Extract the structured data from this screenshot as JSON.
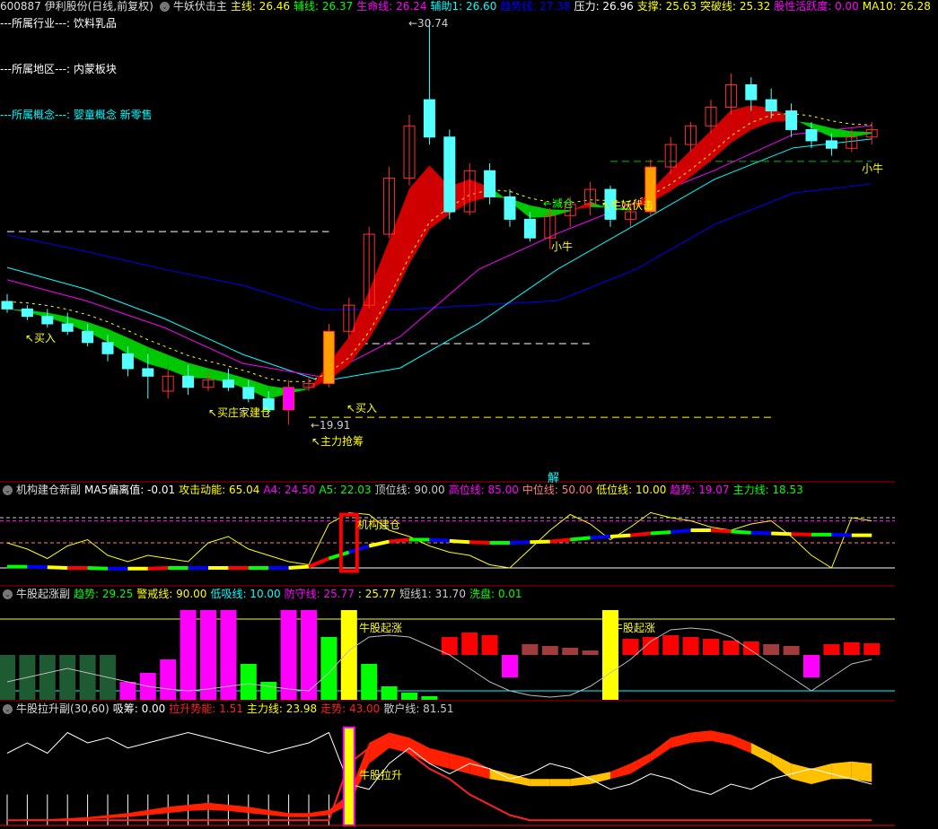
{
  "header": {
    "title": "600887 伊利股份(日线,前复权)",
    "indicator": "牛妖伏击主",
    "items": [
      {
        "label": "主线: 26.46",
        "color": "#ffff00"
      },
      {
        "label": "辅线: 26.37",
        "color": "#00ff00"
      },
      {
        "label": "生命线: 26.24",
        "color": "#ff00ff"
      },
      {
        "label": "辅助1: 26.60",
        "color": "#00ffff"
      },
      {
        "label": "趋势线: 27.38",
        "color": "#0000ff"
      },
      {
        "label": "压力: 26.96",
        "color": "#ffffff"
      },
      {
        "label": "支撑: 25.63",
        "color": "#ffff00"
      },
      {
        "label": "突破线: 25.32",
        "color": "#ffff00"
      },
      {
        "label": "股性活跃度: 0.00",
        "color": "#ff00ff"
      },
      {
        "label": "MA10: 26.28",
        "color": "#ffff00"
      }
    ]
  },
  "info": {
    "industry": "---所属行业---: 饮料乳品",
    "region": "---所属地区---: 内蒙板块",
    "concept": "---所属概念---: 婴童概念 新零售"
  },
  "annotations": {
    "high": "←30.74",
    "low": "←19.91",
    "buy1": "↖买入",
    "buy2": "↖买入",
    "dealer": "↖买庄家建仓",
    "main_grab": "↖主力抢筹",
    "reduce": "←减仓",
    "niuyao": "↖牛妖伏击",
    "xiaoniu1": "小牛",
    "xiaoniu2": "小牛",
    "jie": "解",
    "jigou": "机构建仓",
    "qizhang1": "牛股起涨",
    "qizhang2": "牛股起涨",
    "lasheng": "牛股拉升"
  },
  "panel2": {
    "title": "机构建仓新副",
    "items": [
      {
        "label": "MA5偏离值: -0.01",
        "color": "#ffffff"
      },
      {
        "label": "攻击动能: 65.04",
        "color": "#ffff00"
      },
      {
        "label": "A4: 24.50",
        "color": "#ff00ff"
      },
      {
        "label": "A5: 22.03",
        "color": "#00ff00"
      },
      {
        "label": "顶位线: 90.00",
        "color": "#cccccc"
      },
      {
        "label": "高位线: 85.00",
        "color": "#ff00ff"
      },
      {
        "label": "中位线: 50.00",
        "color": "#ff7f7f"
      },
      {
        "label": "低位线: 10.00",
        "color": "#ffff00"
      },
      {
        "label": "趋势: 19.07",
        "color": "#ff00ff"
      },
      {
        "label": "主力线: 18.53",
        "color": "#00ff00"
      }
    ]
  },
  "panel3": {
    "title": "牛股起涨副",
    "items": [
      {
        "label": "趋势: 29.25",
        "color": "#00ff00"
      },
      {
        "label": "警戒线: 90.00",
        "color": "#ffff00"
      },
      {
        "label": "低吸线: 10.00",
        "color": "#00ffff"
      },
      {
        "label": "防守线: 25.77",
        "color": "#ff00ff"
      },
      {
        "label": ": 25.77",
        "color": "#ffff00"
      },
      {
        "label": "短线1: 31.70",
        "color": "#cccccc"
      },
      {
        "label": "洗盘: 0.01",
        "color": "#00ff00"
      }
    ]
  },
  "panel4": {
    "title": "牛股拉升副(30,60)",
    "items": [
      {
        "label": "吸筹: 0.00",
        "color": "#ffffff"
      },
      {
        "label": "拉升势能: 1.51",
        "color": "#ff2020"
      },
      {
        "label": "主力线: 23.98",
        "color": "#ffff00"
      },
      {
        "label": "走势: 43.00",
        "color": "#ff2020"
      },
      {
        "label": "散户线: 81.51",
        "color": "#cccccc"
      }
    ]
  },
  "chart_data": [
    {
      "type": "candlestick",
      "name": "main",
      "ohlc": [
        [
          23.2,
          23.4,
          22.9,
          23.0
        ],
        [
          23.0,
          23.1,
          22.7,
          22.8
        ],
        [
          22.8,
          23.0,
          22.5,
          22.6
        ],
        [
          22.6,
          22.9,
          22.3,
          22.4
        ],
        [
          22.4,
          22.6,
          22.0,
          22.1
        ],
        [
          22.1,
          22.3,
          21.6,
          21.8
        ],
        [
          21.8,
          22.0,
          21.2,
          21.4
        ],
        [
          21.4,
          21.8,
          20.6,
          21.2
        ],
        [
          20.8,
          21.4,
          20.6,
          21.2
        ],
        [
          21.2,
          21.5,
          20.7,
          20.9
        ],
        [
          20.9,
          21.3,
          20.8,
          21.1
        ],
        [
          21.1,
          21.4,
          20.8,
          20.9
        ],
        [
          20.9,
          21.1,
          20.5,
          20.6
        ],
        [
          20.6,
          20.8,
          20.2,
          20.3
        ],
        [
          20.3,
          21.1,
          19.91,
          20.9
        ],
        [
          20.9,
          21.2,
          20.8,
          21.0
        ],
        [
          21.0,
          22.6,
          20.9,
          22.4
        ],
        [
          22.4,
          23.3,
          22.2,
          23.1
        ],
        [
          23.1,
          25.2,
          23.0,
          25.0
        ],
        [
          25.0,
          26.8,
          24.9,
          26.5
        ],
        [
          26.5,
          28.2,
          26.3,
          27.9
        ],
        [
          28.6,
          30.74,
          27.4,
          27.6
        ],
        [
          27.6,
          27.8,
          25.4,
          25.6
        ],
        [
          25.6,
          26.9,
          25.5,
          26.7
        ],
        [
          26.7,
          26.9,
          25.8,
          26.0
        ],
        [
          26.0,
          26.2,
          25.2,
          25.4
        ],
        [
          25.4,
          25.6,
          24.8,
          24.9
        ],
        [
          24.9,
          25.7,
          24.6,
          25.5
        ],
        [
          25.5,
          26.0,
          25.2,
          25.8
        ],
        [
          25.8,
          26.4,
          25.5,
          26.2
        ],
        [
          26.2,
          26.3,
          25.2,
          25.4
        ],
        [
          25.4,
          25.8,
          25.2,
          25.6
        ],
        [
          25.6,
          27.0,
          25.5,
          26.8
        ],
        [
          26.8,
          27.6,
          26.6,
          27.4
        ],
        [
          27.4,
          28.0,
          27.2,
          27.9
        ],
        [
          27.9,
          28.6,
          27.7,
          28.4
        ],
        [
          28.4,
          29.3,
          28.2,
          29.0
        ],
        [
          29.0,
          29.2,
          28.3,
          28.6
        ],
        [
          28.6,
          28.9,
          28.1,
          28.3
        ],
        [
          28.3,
          28.5,
          27.6,
          27.8
        ],
        [
          27.8,
          28.0,
          27.3,
          27.5
        ],
        [
          27.5,
          27.7,
          27.1,
          27.3
        ],
        [
          27.3,
          27.8,
          27.2,
          27.6
        ],
        [
          27.6,
          28.0,
          27.4,
          27.8
        ]
      ],
      "highlight": {
        "14": "#ff00ff",
        "16": "#ffa000",
        "32": "#ffa000"
      },
      "lines": [
        {
          "name": "趋势线",
          "color": "#0000ff",
          "values": [
            24.98,
            24.54,
            24.06,
            23.63,
            22.98,
            22.98,
            23.1,
            23.22,
            24.06,
            25.26,
            26.1,
            26.35
          ]
        },
        {
          "name": "辅助1",
          "color": "#00ffff",
          "values": [
            24.11,
            23.53,
            22.74,
            21.78,
            21.06,
            21.42,
            22.62,
            24.06,
            25.26,
            26.47,
            27.31,
            27.55
          ]
        },
        {
          "name": "生命线",
          "color": "#ff00ff",
          "values": [
            23.78,
            23.22,
            22.5,
            21.54,
            21.18,
            22.26,
            24.06,
            25.02,
            25.86,
            26.71,
            27.67,
            27.91
          ]
        }
      ],
      "levels": [
        {
          "price": 25.07,
          "color": "#ffffff",
          "from": 0,
          "to": 16
        },
        {
          "price": 22.07,
          "color": "#ffffff",
          "from": 17,
          "to": 29
        },
        {
          "price": 20.1,
          "color": "#ffff00",
          "from": 15,
          "to": 38
        },
        {
          "price": 26.95,
          "color": "#00c000",
          "from": 30,
          "to": 43
        }
      ],
      "price_range": [
        19.91,
        30.74
      ]
    },
    {
      "type": "line",
      "name": "panel2",
      "ylim": [
        0,
        100
      ],
      "yellow": [
        50,
        40,
        25,
        45,
        55,
        30,
        20,
        30,
        25,
        20,
        50,
        60,
        40,
        30,
        20,
        15,
        80,
        98,
        95,
        70,
        60,
        45,
        35,
        30,
        15,
        10,
        40,
        70,
        95,
        80,
        55,
        75,
        98,
        90,
        85,
        75,
        70,
        80,
        85,
        60,
        30,
        10,
        90,
        85
      ],
      "trend": [
        12,
        12,
        11,
        10,
        10,
        9,
        9,
        9,
        10,
        10,
        10,
        10,
        10,
        10,
        10,
        12,
        25,
        35,
        45,
        52,
        55,
        55,
        53,
        51,
        50,
        50,
        51,
        52,
        55,
        58,
        60,
        62,
        65,
        67,
        70,
        70,
        68,
        66,
        65,
        64,
        63,
        63,
        62,
        62
      ],
      "levels": [
        90,
        85,
        50,
        10
      ]
    },
    {
      "type": "bar",
      "name": "panel3",
      "ylim": [
        0,
        100
      ],
      "bars": [
        [
          0,
          50,
          "dg"
        ],
        [
          0,
          50,
          "dg"
        ],
        [
          0,
          50,
          "dg"
        ],
        [
          0,
          50,
          "dg"
        ],
        [
          0,
          50,
          "dg"
        ],
        [
          0,
          50,
          "dg"
        ],
        [
          0,
          20,
          "m"
        ],
        [
          0,
          30,
          "m"
        ],
        [
          0,
          45,
          "m"
        ],
        [
          0,
          100,
          "m"
        ],
        [
          0,
          100,
          "m"
        ],
        [
          0,
          100,
          "m"
        ],
        [
          0,
          40,
          "g"
        ],
        [
          0,
          20,
          "g"
        ],
        [
          0,
          100,
          "m"
        ],
        [
          0,
          100,
          "m"
        ],
        [
          0,
          70,
          "g"
        ],
        [
          0,
          100,
          "y"
        ],
        [
          0,
          40,
          "g"
        ],
        [
          0,
          15,
          "g"
        ],
        [
          0,
          8,
          "g"
        ],
        [
          0,
          4,
          "g"
        ],
        [
          50,
          70,
          "r"
        ],
        [
          50,
          75,
          "r"
        ],
        [
          50,
          72,
          "r"
        ],
        [
          50,
          25,
          "m"
        ],
        [
          50,
          62,
          "br"
        ],
        [
          50,
          60,
          "br"
        ],
        [
          50,
          58,
          "br"
        ],
        [
          50,
          55,
          "br"
        ],
        [
          0,
          100,
          "y"
        ],
        [
          50,
          68,
          "r"
        ],
        [
          50,
          70,
          "r"
        ],
        [
          50,
          72,
          "r"
        ],
        [
          50,
          70,
          "r"
        ],
        [
          50,
          68,
          "r"
        ],
        [
          50,
          66,
          "r"
        ],
        [
          50,
          65,
          "r"
        ],
        [
          50,
          62,
          "br"
        ],
        [
          50,
          60,
          "br"
        ],
        [
          50,
          25,
          "m"
        ],
        [
          50,
          62,
          "r"
        ],
        [
          50,
          64,
          "r"
        ],
        [
          50,
          63,
          "r"
        ]
      ],
      "short": [
        20,
        25,
        30,
        35,
        30,
        25,
        20,
        15,
        12,
        10,
        12,
        15,
        18,
        15,
        12,
        10,
        30,
        55,
        70,
        72,
        70,
        60,
        50,
        35,
        20,
        10,
        5,
        3,
        5,
        15,
        30,
        45,
        65,
        78,
        80,
        78,
        70,
        55,
        40,
        25,
        10,
        25,
        40,
        45
      ],
      "colors": {
        "dg": "#1e5a32",
        "m": "#ff00ff",
        "g": "#00ff00",
        "y": "#ffff00",
        "r": "#ff0000",
        "br": "#a03c3c"
      },
      "levels": [
        90,
        10
      ]
    },
    {
      "type": "area",
      "name": "panel4",
      "ylim": [
        0,
        100
      ],
      "white": [
        70,
        80,
        70,
        90,
        80,
        85,
        75,
        80,
        85,
        90,
        85,
        80,
        75,
        70,
        75,
        80,
        90,
        40,
        35,
        60,
        75,
        60,
        50,
        60,
        55,
        45,
        50,
        60,
        55,
        45,
        35,
        40,
        50,
        45,
        35,
        30,
        40,
        35,
        45,
        50,
        55,
        50,
        45,
        40
      ],
      "red": [
        5,
        5,
        5,
        5,
        5,
        5,
        5,
        5,
        5,
        5,
        5,
        5,
        5,
        5,
        5,
        5,
        5,
        60,
        75,
        85,
        70,
        55,
        45,
        30,
        20,
        10,
        5,
        5,
        5,
        5,
        5,
        5,
        5,
        5,
        5,
        5,
        5,
        5,
        5,
        5,
        5,
        5,
        5,
        5
      ],
      "band_upper": [
        5,
        6,
        6,
        7,
        8,
        10,
        12,
        15,
        18,
        20,
        22,
        20,
        18,
        15,
        12,
        12,
        15,
        30,
        80,
        90,
        85,
        75,
        70,
        65,
        55,
        50,
        45,
        45,
        45,
        48,
        52,
        60,
        70,
        85,
        90,
        92,
        88,
        80,
        70,
        60,
        55,
        60,
        62,
        60
      ],
      "band_lower": [
        5,
        5,
        5,
        5,
        6,
        7,
        8,
        10,
        12,
        14,
        15,
        14,
        12,
        10,
        8,
        8,
        10,
        20,
        60,
        75,
        70,
        60,
        55,
        50,
        45,
        42,
        38,
        38,
        38,
        40,
        45,
        50,
        62,
        75,
        80,
        82,
        78,
        70,
        60,
        45,
        40,
        45,
        45,
        42
      ],
      "band_colors": [
        "#ff2000",
        "#ffc000"
      ]
    }
  ]
}
